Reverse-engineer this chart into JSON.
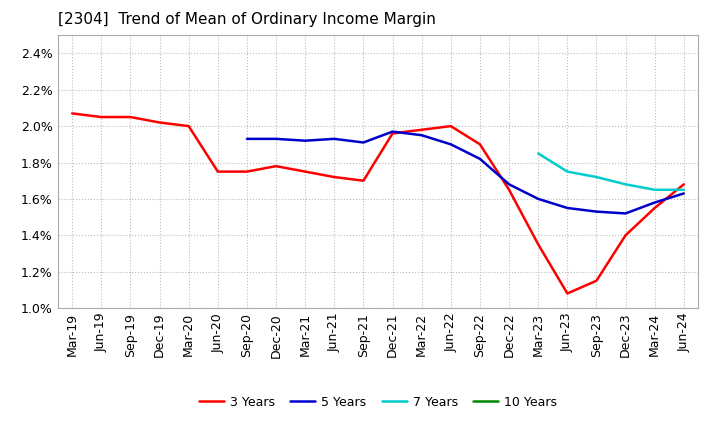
{
  "title": "[2304]  Trend of Mean of Ordinary Income Margin",
  "title_fontsize": 11,
  "background_color": "#ffffff",
  "plot_bg_color": "#ffffff",
  "grid_color": "#bbbbbb",
  "ylim": [
    0.01,
    0.025
  ],
  "yticks": [
    0.01,
    0.012,
    0.014,
    0.016,
    0.018,
    0.02,
    0.022,
    0.024
  ],
  "ytick_labels": [
    "1.0%",
    "1.2%",
    "1.4%",
    "1.6%",
    "1.8%",
    "2.0%",
    "2.2%",
    "2.4%"
  ],
  "x_labels": [
    "Mar-19",
    "Jun-19",
    "Sep-19",
    "Dec-19",
    "Mar-20",
    "Jun-20",
    "Sep-20",
    "Dec-20",
    "Mar-21",
    "Jun-21",
    "Sep-21",
    "Dec-21",
    "Mar-22",
    "Jun-22",
    "Sep-22",
    "Dec-22",
    "Mar-23",
    "Jun-23",
    "Sep-23",
    "Dec-23",
    "Mar-24",
    "Jun-24"
  ],
  "series": {
    "3 Years": {
      "color": "#ff0000",
      "values": [
        0.0207,
        0.0205,
        0.0205,
        0.0202,
        0.02,
        0.0175,
        0.0175,
        0.0178,
        0.0175,
        0.0172,
        0.017,
        0.0196,
        0.0198,
        0.02,
        0.019,
        0.0165,
        0.0135,
        0.0108,
        0.0115,
        0.014,
        0.0155,
        0.0168
      ]
    },
    "5 Years": {
      "color": "#0000cc",
      "values": [
        null,
        null,
        null,
        null,
        null,
        null,
        0.0193,
        0.0193,
        0.0192,
        0.0193,
        0.0191,
        0.0197,
        0.0195,
        0.019,
        0.0182,
        0.0168,
        0.016,
        0.0155,
        0.0153,
        0.0152,
        0.0158,
        0.0163
      ]
    },
    "7 Years": {
      "color": "#00cccc",
      "values": [
        null,
        null,
        null,
        null,
        null,
        null,
        null,
        null,
        null,
        null,
        null,
        null,
        null,
        null,
        null,
        null,
        0.0185,
        0.0175,
        0.0172,
        0.0168,
        0.0165,
        0.0165
      ]
    },
    "10 Years": {
      "color": "#008800",
      "values": [
        null,
        null,
        null,
        null,
        null,
        null,
        null,
        null,
        null,
        null,
        null,
        null,
        null,
        null,
        null,
        null,
        null,
        null,
        null,
        null,
        null,
        null
      ]
    }
  },
  "legend_loc": "lower center",
  "line_width": 1.8
}
